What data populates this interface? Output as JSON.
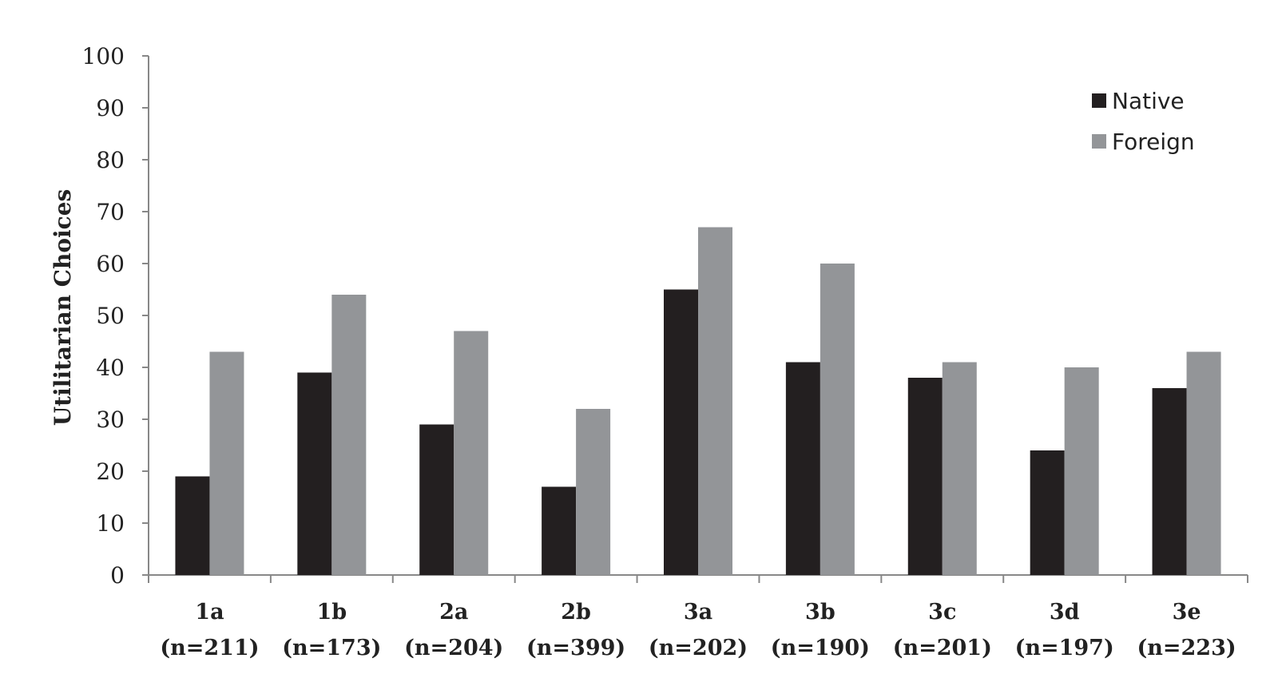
{
  "chart_data": {
    "type": "bar",
    "ylabel": "Utilitarian Choices",
    "xlabel": "",
    "ylim": [
      0,
      100
    ],
    "yticks": [
      0,
      10,
      20,
      30,
      40,
      50,
      60,
      70,
      80,
      90,
      100
    ],
    "categories": [
      {
        "name": "1a",
        "n": "(n=211)"
      },
      {
        "name": "1b",
        "n": "(n=173)"
      },
      {
        "name": "2a",
        "n": "(n=204)"
      },
      {
        "name": "2b",
        "n": "(n=399)"
      },
      {
        "name": "3a",
        "n": "(n=202)"
      },
      {
        "name": "3b",
        "n": "(n=190)"
      },
      {
        "name": "3c",
        "n": "(n=201)"
      },
      {
        "name": "3d",
        "n": "(n=197)"
      },
      {
        "name": "3e",
        "n": "(n=223)"
      }
    ],
    "series": [
      {
        "name": "Native",
        "color": "#231f20",
        "values": [
          19,
          39,
          29,
          17,
          55,
          41,
          38,
          24,
          36
        ]
      },
      {
        "name": "Foreign",
        "color": "#939598",
        "values": [
          43,
          54,
          47,
          32,
          67,
          60,
          41,
          40,
          43
        ]
      }
    ],
    "legend_position": "top-right",
    "grid": false
  }
}
